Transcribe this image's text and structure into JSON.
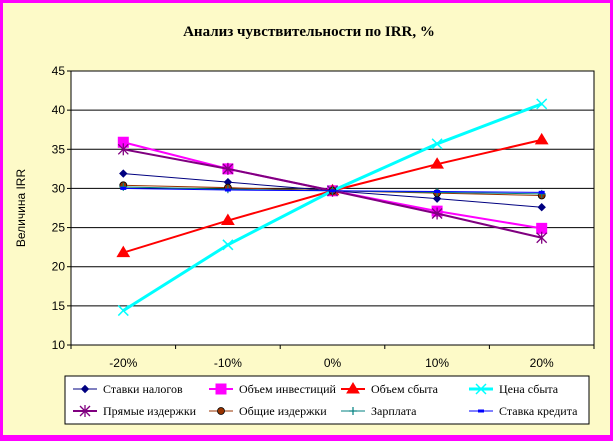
{
  "chart_data": {
    "type": "line",
    "title": "Анализ чувствительности по IRR, %",
    "xlabel": "",
    "ylabel": "Величина IRR",
    "categories": [
      "-20%",
      "-10%",
      "0%",
      "10%",
      "20%"
    ],
    "ylim": [
      10,
      45
    ],
    "yticks": [
      10,
      15,
      20,
      25,
      30,
      35,
      40,
      45
    ],
    "grid": true,
    "legend_position": "bottom",
    "series": [
      {
        "name": "Ставки налогов",
        "values": [
          31.9,
          30.8,
          29.7,
          28.7,
          27.6
        ],
        "color": "#000080",
        "marker": "diamond",
        "width": 1
      },
      {
        "name": "Объем инвестиций",
        "values": [
          35.9,
          32.5,
          29.7,
          27.1,
          24.9
        ],
        "color": "#ff00ff",
        "marker": "square",
        "width": 2
      },
      {
        "name": "Объем сбыта",
        "values": [
          21.8,
          25.9,
          29.7,
          33.1,
          36.2
        ],
        "color": "#ff0000",
        "marker": "triangle",
        "width": 2
      },
      {
        "name": "Цена сбыта",
        "values": [
          14.4,
          22.8,
          29.7,
          35.7,
          40.8
        ],
        "color": "#00ffff",
        "marker": "x",
        "width": 3
      },
      {
        "name": "Прямые издержки",
        "values": [
          35.0,
          32.5,
          29.7,
          26.8,
          23.7
        ],
        "color": "#800080",
        "marker": "asterisk",
        "width": 2
      },
      {
        "name": "Общие издержки",
        "values": [
          30.4,
          30.1,
          29.7,
          29.4,
          29.1
        ],
        "color": "#993300",
        "marker": "circle",
        "width": 1
      },
      {
        "name": "Зарплата",
        "values": [
          30.2,
          29.9,
          29.7,
          29.5,
          29.3
        ],
        "color": "#008080",
        "marker": "plus",
        "width": 1
      },
      {
        "name": "Ставка кредита",
        "values": [
          30.0,
          29.8,
          29.7,
          29.6,
          29.5
        ],
        "color": "#0000ff",
        "marker": "dash",
        "width": 1
      }
    ]
  }
}
